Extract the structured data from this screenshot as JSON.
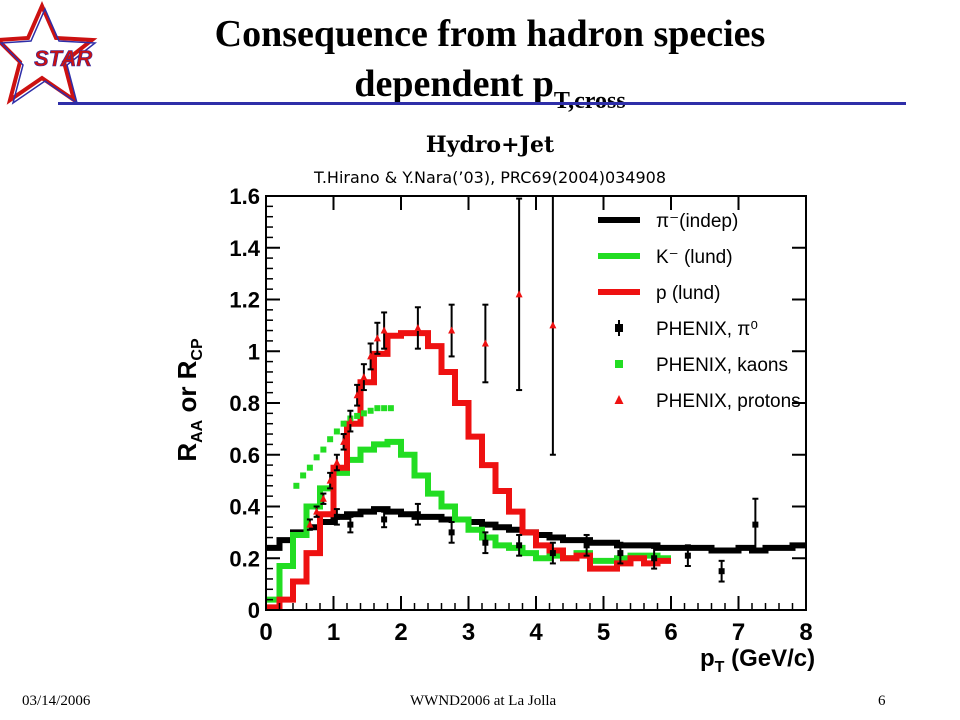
{
  "slide": {
    "title_line1": "Consequence from hadron species",
    "title_line2": "dependent p",
    "title_line2_sub": "T,cross",
    "logo_text": "STAR",
    "subtitle": "Hydro+Jet",
    "citation": "T.Hirano & Y.Nara(’03), PRC69(2004)034908",
    "footer_date": "03/14/2006",
    "footer_center": "WWND2006 at La Jolla",
    "footer_page": "6"
  },
  "colors": {
    "accent": "#2e2ea8",
    "logo_red": "#cc1111",
    "black": "#000000",
    "green": "#22dd22",
    "red": "#ee1111"
  },
  "chart_data": {
    "type": "line",
    "xlabel": "p_T (GeV/c)",
    "ylabel": "R_AA or R_CP",
    "xlim": [
      0,
      8
    ],
    "ylim": [
      0,
      1.6
    ],
    "xticks": [
      "0",
      "1",
      "2",
      "3",
      "4",
      "5",
      "6",
      "7",
      "8"
    ],
    "yticks": [
      "0",
      "0.2",
      "0.4",
      "0.6",
      "0.8",
      "1",
      "1.2",
      "1.4",
      "1.6"
    ],
    "grid": false,
    "legend_position": "top-right",
    "series": [
      {
        "name": "π⁻(indep)",
        "kind": "step",
        "color": "#000000",
        "x": [
          0,
          0.2,
          0.4,
          0.6,
          0.8,
          1.0,
          1.2,
          1.4,
          1.6,
          1.8,
          2.0,
          2.2,
          2.4,
          2.6,
          2.8,
          3.0,
          3.2,
          3.4,
          3.6,
          3.8,
          4.0,
          4.2,
          4.4,
          4.6,
          4.8,
          5.0,
          5.2,
          5.4,
          5.6,
          5.8,
          6.0,
          6.2,
          6.4,
          6.6,
          6.8,
          7.0,
          7.2,
          7.4,
          7.6,
          7.8,
          8.0
        ],
        "y": [
          0.24,
          0.27,
          0.3,
          0.32,
          0.34,
          0.36,
          0.37,
          0.38,
          0.39,
          0.38,
          0.37,
          0.36,
          0.36,
          0.35,
          0.35,
          0.34,
          0.33,
          0.32,
          0.31,
          0.3,
          0.29,
          0.28,
          0.27,
          0.27,
          0.26,
          0.26,
          0.25,
          0.25,
          0.25,
          0.24,
          0.24,
          0.24,
          0.24,
          0.23,
          0.23,
          0.24,
          0.23,
          0.24,
          0.24,
          0.25,
          0.25
        ]
      },
      {
        "name": "K⁻ (lund)",
        "kind": "step",
        "color": "#22dd22",
        "x": [
          0,
          0.2,
          0.4,
          0.6,
          0.8,
          1.0,
          1.2,
          1.4,
          1.6,
          1.8,
          2.0,
          2.2,
          2.4,
          2.6,
          2.8,
          3.0,
          3.2,
          3.4,
          3.6,
          3.8,
          4.0,
          4.2,
          4.4,
          4.6,
          4.8,
          5.0,
          5.2,
          5.4,
          5.6,
          5.8,
          6.0
        ],
        "y": [
          0.04,
          0.17,
          0.29,
          0.4,
          0.47,
          0.53,
          0.58,
          0.62,
          0.64,
          0.65,
          0.6,
          0.52,
          0.45,
          0.4,
          0.35,
          0.31,
          0.28,
          0.25,
          0.24,
          0.22,
          0.2,
          0.21,
          0.2,
          0.22,
          0.19,
          0.19,
          0.2,
          0.21,
          0.21,
          0.2,
          0.2
        ]
      },
      {
        "name": "p (lund)",
        "kind": "step",
        "color": "#ee1111",
        "x": [
          0,
          0.2,
          0.4,
          0.6,
          0.8,
          1.0,
          1.2,
          1.4,
          1.6,
          1.8,
          2.0,
          2.2,
          2.4,
          2.6,
          2.8,
          3.0,
          3.2,
          3.4,
          3.6,
          3.8,
          4.0,
          4.2,
          4.4,
          4.6,
          4.8,
          5.0,
          5.2,
          5.4,
          5.6,
          5.8,
          6.0
        ],
        "y": [
          0.01,
          0.04,
          0.11,
          0.22,
          0.37,
          0.55,
          0.72,
          0.88,
          0.99,
          1.06,
          1.07,
          1.07,
          1.02,
          0.92,
          0.8,
          0.67,
          0.56,
          0.46,
          0.38,
          0.3,
          0.25,
          0.23,
          0.2,
          0.21,
          0.16,
          0.16,
          0.18,
          0.2,
          0.18,
          0.19,
          0.19
        ]
      },
      {
        "name": "PHENIX, π⁰",
        "kind": "points",
        "marker": "square",
        "color": "#000000",
        "x": [
          1.05,
          1.25,
          1.75,
          2.25,
          2.75,
          3.25,
          3.75,
          4.25,
          4.75,
          5.25,
          5.75,
          6.25,
          6.75,
          7.25
        ],
        "y": [
          0.36,
          0.33,
          0.35,
          0.37,
          0.3,
          0.26,
          0.25,
          0.22,
          0.25,
          0.22,
          0.2,
          0.21,
          0.15,
          0.33
        ],
        "yerr": [
          0.03,
          0.03,
          0.03,
          0.04,
          0.04,
          0.04,
          0.04,
          0.04,
          0.04,
          0.04,
          0.04,
          0.04,
          0.04,
          0.1
        ]
      },
      {
        "name": "PHENIX, kaons",
        "kind": "points",
        "marker": "square",
        "color": "#22dd22",
        "x": [
          0.45,
          0.55,
          0.65,
          0.75,
          0.85,
          0.95,
          1.05,
          1.15,
          1.25,
          1.35,
          1.45,
          1.55,
          1.65,
          1.75,
          1.85
        ],
        "y": [
          0.48,
          0.52,
          0.55,
          0.59,
          0.62,
          0.66,
          0.69,
          0.72,
          0.74,
          0.75,
          0.76,
          0.77,
          0.78,
          0.78,
          0.78
        ],
        "yerr": [
          0,
          0,
          0,
          0,
          0,
          0,
          0,
          0,
          0,
          0,
          0,
          0,
          0,
          0,
          0
        ]
      },
      {
        "name": "PHENIX, protons",
        "kind": "points",
        "marker": "triangle",
        "color": "#ee1111",
        "x": [
          0.65,
          0.75,
          0.85,
          0.95,
          1.05,
          1.15,
          1.25,
          1.35,
          1.45,
          1.55,
          1.65,
          1.75,
          2.25,
          2.75,
          3.25,
          3.75,
          4.25
        ],
        "y": [
          0.33,
          0.38,
          0.43,
          0.5,
          0.57,
          0.65,
          0.73,
          0.83,
          0.9,
          0.98,
          1.05,
          1.08,
          1.09,
          1.08,
          1.03,
          1.22,
          1.1
        ],
        "yerr": [
          0.02,
          0.02,
          0.02,
          0.03,
          0.03,
          0.03,
          0.04,
          0.04,
          0.05,
          0.05,
          0.06,
          0.07,
          0.08,
          0.1,
          0.15,
          0.37,
          0.5
        ]
      }
    ]
  }
}
